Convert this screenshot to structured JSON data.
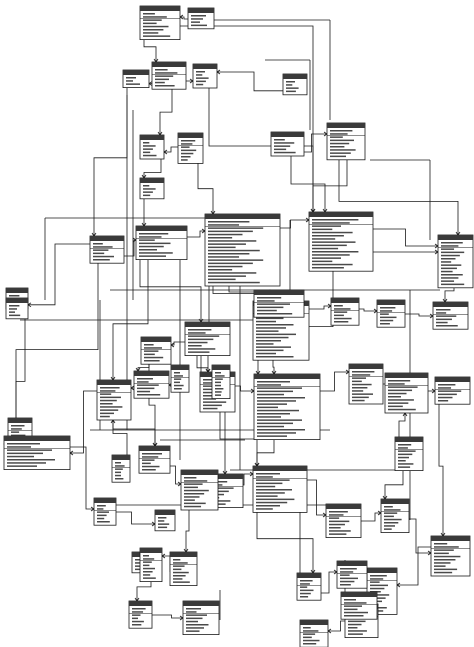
{
  "diagram": {
    "kind": "entity-relationship schema",
    "entity_count": 58,
    "text_legible": false,
    "colors": {
      "background": "#ffffff",
      "line": "#1a1a1a",
      "header_fill": "#3a3a3a",
      "box_fill": "#ffffff",
      "text_placeholder": "#4a4a4a"
    },
    "entities": [
      {
        "id": "e01",
        "rows": 8
      },
      {
        "id": "e02",
        "rows": 4
      },
      {
        "id": "e03",
        "rows": 3
      },
      {
        "id": "e04",
        "rows": 6
      },
      {
        "id": "e05",
        "rows": 5
      },
      {
        "id": "e06",
        "rows": 4
      },
      {
        "id": "e07",
        "rows": 7
      },
      {
        "id": "e08",
        "rows": 5
      },
      {
        "id": "e09",
        "rows": 5
      },
      {
        "id": "e10",
        "rows": 4
      },
      {
        "id": "e11",
        "rows": 9
      },
      {
        "id": "e12",
        "rows": 6
      },
      {
        "id": "e13",
        "rows": 8
      },
      {
        "id": "e14",
        "rows": 20
      },
      {
        "id": "e15",
        "rows": 16
      },
      {
        "id": "e16",
        "rows": 14
      },
      {
        "id": "e17",
        "rows": 4
      },
      {
        "id": "e18",
        "rows": 4
      },
      {
        "id": "e19",
        "rows": 16
      },
      {
        "id": "e20",
        "rows": 8
      },
      {
        "id": "e21",
        "rows": 6
      },
      {
        "id": "e22",
        "rows": 6
      },
      {
        "id": "e23",
        "rows": 6
      },
      {
        "id": "e24",
        "rows": 6
      },
      {
        "id": "e25",
        "rows": 10
      },
      {
        "id": "e26",
        "rows": 8
      },
      {
        "id": "e27",
        "rows": 10
      },
      {
        "id": "e28",
        "rows": 6
      },
      {
        "id": "e29",
        "rows": 10
      },
      {
        "id": "e30",
        "rows": 18
      },
      {
        "id": "e31",
        "rows": 10
      },
      {
        "id": "e32",
        "rows": 10
      },
      {
        "id": "e33",
        "rows": 6
      },
      {
        "id": "e34",
        "rows": 6
      },
      {
        "id": "e35",
        "rows": 8
      },
      {
        "id": "e36",
        "rows": 12
      },
      {
        "id": "e37",
        "rows": 8
      },
      {
        "id": "e38",
        "rows": 8
      },
      {
        "id": "e39",
        "rows": 4
      },
      {
        "id": "e40",
        "rows": 6
      },
      {
        "id": "e41",
        "rows": 8
      },
      {
        "id": "e42",
        "rows": 10
      },
      {
        "id": "e43",
        "rows": 10
      },
      {
        "id": "e44",
        "rows": 4
      },
      {
        "id": "e45",
        "rows": 12
      },
      {
        "id": "e46",
        "rows": 8
      },
      {
        "id": "e47",
        "rows": 8
      },
      {
        "id": "e48",
        "rows": 6
      },
      {
        "id": "e49",
        "rows": 6
      },
      {
        "id": "e50",
        "rows": 6
      },
      {
        "id": "e51",
        "rows": 8
      },
      {
        "id": "e52",
        "rows": 8
      },
      {
        "id": "e53",
        "rows": 6
      },
      {
        "id": "e54",
        "rows": 6
      },
      {
        "id": "e55",
        "rows": 8
      },
      {
        "id": "e56",
        "rows": 6
      },
      {
        "id": "e57",
        "rows": 6
      },
      {
        "id": "e58",
        "rows": 6
      }
    ]
  }
}
